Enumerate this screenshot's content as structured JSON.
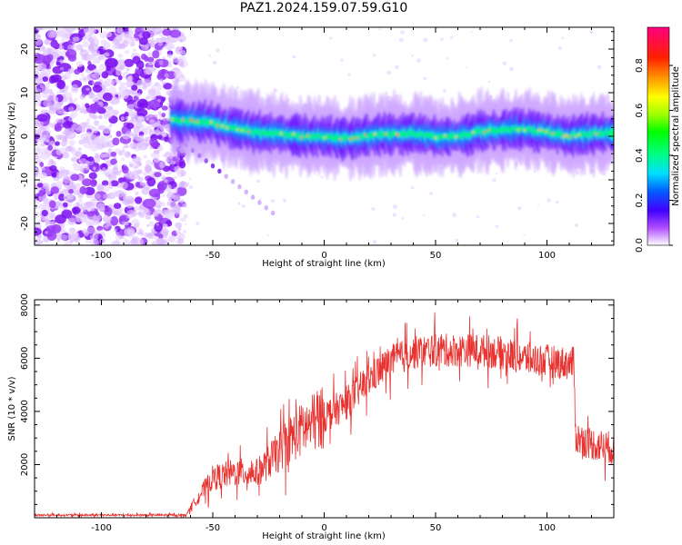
{
  "title": "PAZ1.2024.159.07.59.G10",
  "colors": {
    "snr_line": "#e8322f",
    "frame": "#000000",
    "noise_purple": "#8a2be2"
  },
  "chart_data": [
    {
      "type": "heatmap",
      "xlabel": "Height of straight line (km)",
      "ylabel": "Frequency (Hz)",
      "xlim": [
        -130,
        130
      ],
      "ylim": [
        -25,
        25
      ],
      "xticks": [
        -100,
        -50,
        0,
        50,
        100
      ],
      "yticks": [
        -20,
        -10,
        0,
        10,
        20
      ],
      "colorbar": {
        "label": "Normalized spectral amplitude",
        "ticks": [
          0.0,
          0.2,
          0.4,
          0.6,
          0.8
        ],
        "range": [
          0,
          0.97
        ]
      },
      "ridge": {
        "x": [
          -68,
          -60,
          -50,
          -40,
          -30,
          -20,
          -10,
          0,
          10,
          20,
          30,
          40,
          50,
          60,
          70,
          80,
          90,
          100,
          110,
          120,
          130
        ],
        "frequency": [
          4,
          3.5,
          3,
          2,
          1,
          0.5,
          0,
          0,
          -0.5,
          0,
          0.5,
          0.5,
          0,
          0,
          1,
          1.5,
          1.5,
          1,
          0,
          0.5,
          1
        ]
      },
      "noise_region_x": [
        -130,
        -65
      ]
    },
    {
      "type": "line",
      "xlabel": "Height of straight line (km)",
      "ylabel": "SNR (10 * v/v)",
      "xlim": [
        -130,
        130
      ],
      "ylim": [
        0,
        8200
      ],
      "xticks": [
        -100,
        -50,
        0,
        50,
        100
      ],
      "yticks": [
        2000,
        4000,
        6000,
        8000
      ],
      "series": [
        {
          "x": [
            -130,
            -62,
            -60,
            -50,
            -40,
            -30,
            -20,
            -15,
            -10,
            0,
            10,
            20,
            30,
            40,
            50,
            60,
            70,
            80,
            90,
            100,
            110,
            112,
            113,
            120,
            130
          ],
          "values": [
            100,
            100,
            400,
            1500,
            1700,
            1700,
            2500,
            3000,
            3300,
            3800,
            4300,
            5200,
            5900,
            6200,
            6300,
            6300,
            6300,
            6200,
            6000,
            5900,
            5800,
            5800,
            3000,
            2800,
            2600
          ]
        }
      ]
    }
  ]
}
